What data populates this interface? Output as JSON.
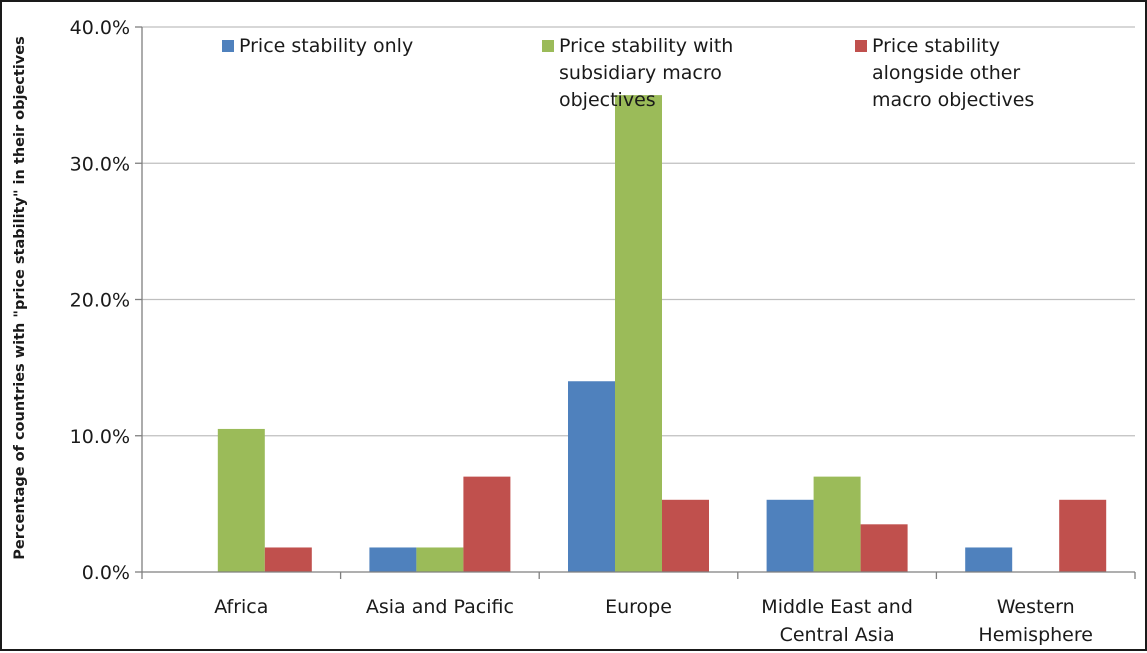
{
  "chart_data": {
    "type": "bar",
    "title": "",
    "xlabel": "",
    "ylabel": "Percentage of countries with \"price stability\" in their objectives",
    "ylim": [
      0,
      40
    ],
    "y_ticks": [
      0,
      10,
      20,
      30,
      40
    ],
    "y_tick_labels": [
      "0.0%",
      "10.0%",
      "20.0%",
      "30.0%",
      "40.0%"
    ],
    "grid": true,
    "legend_position": "top",
    "categories": [
      [
        "Africa"
      ],
      [
        "Asia and Pacific"
      ],
      [
        "Europe"
      ],
      [
        "Middle East and",
        "Central Asia"
      ],
      [
        "Western",
        "Hemisphere"
      ]
    ],
    "series": [
      {
        "name": "Price stability only",
        "legend_lines": [
          "Price stability only"
        ],
        "color": "#4f81bd",
        "values": [
          0,
          1.8,
          14.0,
          5.3,
          1.8
        ]
      },
      {
        "name": "Price stability with subsidiary macro objectives",
        "legend_lines": [
          "Price stability with",
          "subsidiary macro",
          "objectives"
        ],
        "color": "#9bbb59",
        "values": [
          10.5,
          1.8,
          35.0,
          7.0,
          0
        ]
      },
      {
        "name": "Price stability alongside other macro objectives",
        "legend_lines": [
          "Price stability",
          "alongside other",
          "macro objectives"
        ],
        "color": "#c0504d",
        "values": [
          1.8,
          7.0,
          5.3,
          3.5,
          5.3
        ]
      }
    ]
  }
}
